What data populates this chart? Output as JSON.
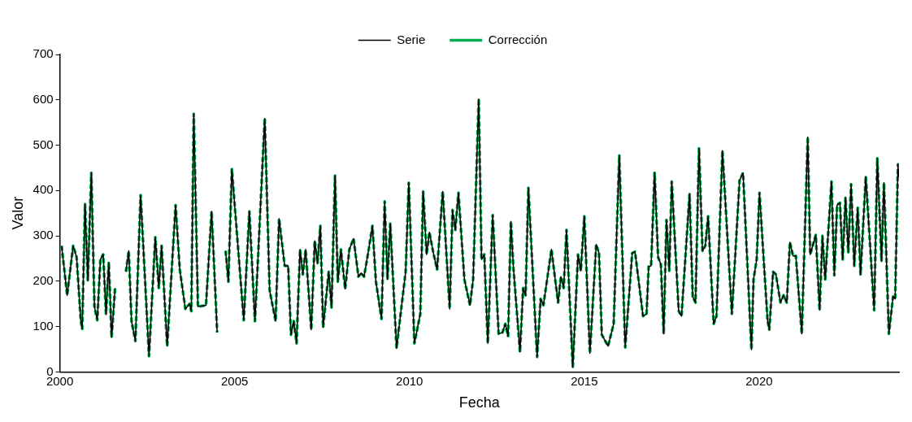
{
  "chart_data": {
    "type": "line",
    "xlabel": "Fecha",
    "ylabel": "Valor",
    "xlim": [
      2000,
      2024
    ],
    "xticks": [
      2000,
      2005,
      2010,
      2015,
      2020
    ],
    "ylim": [
      0,
      700
    ],
    "yticks": [
      0,
      100,
      200,
      300,
      400,
      500,
      600,
      700
    ],
    "grid": false,
    "legend": "top",
    "marker": "none",
    "x": [
      2000.05,
      2000.21,
      2000.38,
      2000.48,
      2000.6,
      2000.64,
      2000.72,
      2000.8,
      2000.9,
      2000.99,
      2001.07,
      2001.16,
      2001.24,
      2001.32,
      2001.4,
      2001.48,
      2001.58,
      2001.73,
      2001.89,
      2001.97,
      2002.05,
      2002.16,
      2002.31,
      2002.55,
      2002.73,
      2002.83,
      2002.91,
      2003.07,
      2003.31,
      2003.43,
      2003.59,
      2003.71,
      2003.76,
      2003.83,
      2003.95,
      2004.18,
      2004.34,
      2004.5,
      2004.62,
      2004.74,
      2004.82,
      2004.92,
      2005.26,
      2005.42,
      2005.58,
      2005.86,
      2006,
      2006.17,
      2006.27,
      2006.43,
      2006.53,
      2006.61,
      2006.69,
      2006.77,
      2006.87,
      2006.95,
      2007.03,
      2007.19,
      2007.29,
      2007.37,
      2007.45,
      2007.53,
      2007.69,
      2007.77,
      2007.87,
      2007.95,
      2008.04,
      2008.16,
      2008.28,
      2008.4,
      2008.54,
      2008.62,
      2008.7,
      2008.81,
      2008.94,
      2009.04,
      2009.2,
      2009.29,
      2009.37,
      2009.45,
      2009.63,
      2009.89,
      2009.98,
      2010.14,
      2010.31,
      2010.39,
      2010.49,
      2010.57,
      2010.67,
      2010.79,
      2010.95,
      2011.15,
      2011.23,
      2011.31,
      2011.4,
      2011.57,
      2011.73,
      2011.82,
      2011.98,
      2012.06,
      2012.14,
      2012.24,
      2012.38,
      2012.55,
      2012.66,
      2012.74,
      2012.82,
      2012.9,
      2012.97,
      2013.16,
      2013.25,
      2013.32,
      2013.4,
      2013.65,
      2013.75,
      2013.83,
      2014.06,
      2014.25,
      2014.33,
      2014.41,
      2014.49,
      2014.67,
      2014.82,
      2014.9,
      2015,
      2015.16,
      2015.34,
      2015.42,
      2015.5,
      2015.68,
      2015.84,
      2016,
      2016.17,
      2016.37,
      2016.45,
      2016.68,
      2016.78,
      2016.84,
      2016.91,
      2017.01,
      2017.11,
      2017.19,
      2017.27,
      2017.35,
      2017.43,
      2017.5,
      2017.7,
      2017.78,
      2018.01,
      2018.1,
      2018.18,
      2018.28,
      2018.38,
      2018.46,
      2018.54,
      2018.7,
      2018.78,
      2018.95,
      2019.22,
      2019.44,
      2019.54,
      2019.78,
      2019.84,
      2019.93,
      2020.01,
      2020.24,
      2020.29,
      2020.4,
      2020.48,
      2020.61,
      2020.7,
      2020.79,
      2020.88,
      2020.97,
      2021.05,
      2021.22,
      2021.39,
      2021.46,
      2021.62,
      2021.73,
      2021.81,
      2021.89,
      2022.07,
      2022.15,
      2022.23,
      2022.31,
      2022.39,
      2022.47,
      2022.55,
      2022.63,
      2022.72,
      2022.82,
      2022.9,
      2023.05,
      2023.29,
      2023.38,
      2023.5,
      2023.57,
      2023.71,
      2023.83,
      2023.89,
      2023.97,
      2023.99
    ],
    "series": [
      {
        "name": "Serie",
        "color": "#000000",
        "line_style": "solid",
        "values": [
          278,
          169,
          278,
          253,
          112,
          95,
          370,
          202,
          439,
          144,
          114,
          248,
          259,
          128,
          242,
          76,
          185,
          null,
          221,
          267,
          112,
          68,
          390,
          35,
          297,
          185,
          278,
          57,
          368,
          226,
          139,
          150,
          134,
          569,
          144,
          147,
          354,
          87,
          null,
          267,
          199,
          447,
          114,
          354,
          112,
          559,
          180,
          112,
          338,
          234,
          234,
          82,
          112,
          63,
          270,
          215,
          270,
          93,
          289,
          240,
          322,
          98,
          221,
          142,
          433,
          199,
          270,
          183,
          270,
          294,
          210,
          218,
          210,
          259,
          322,
          199,
          117,
          376,
          204,
          327,
          52,
          221,
          417,
          63,
          128,
          398,
          259,
          308,
          267,
          226,
          398,
          139,
          357,
          313,
          395,
          204,
          147,
          204,
          602,
          248,
          259,
          63,
          346,
          84,
          87,
          106,
          79,
          332,
          232,
          44,
          185,
          169,
          406,
          33,
          161,
          147,
          270,
          153,
          210,
          185,
          313,
          11,
          259,
          223,
          343,
          41,
          281,
          262,
          82,
          57,
          106,
          477,
          54,
          262,
          265,
          123,
          128,
          232,
          234,
          439,
          253,
          237,
          84,
          335,
          223,
          420,
          134,
          123,
          392,
          166,
          153,
          493,
          267,
          278,
          343,
          106,
          123,
          488,
          128,
          422,
          439,
          49,
          204,
          248,
          395,
          114,
          93,
          221,
          215,
          153,
          169,
          153,
          286,
          256,
          256,
          84,
          518,
          259,
          302,
          136,
          300,
          204,
          420,
          213,
          368,
          373,
          248,
          384,
          264,
          414,
          234,
          362,
          215,
          431,
          136,
          471,
          245,
          417,
          84,
          166,
          161,
          458,
          430
        ]
      },
      {
        "name": "Corrección",
        "color": "#00b050",
        "line_style": "dashed",
        "values": [
          278,
          169,
          278,
          253,
          112,
          95,
          370,
          202,
          439,
          144,
          114,
          248,
          259,
          128,
          242,
          76,
          185,
          null,
          221,
          267,
          112,
          68,
          390,
          35,
          297,
          185,
          278,
          57,
          368,
          226,
          139,
          150,
          134,
          569,
          144,
          147,
          354,
          87,
          null,
          267,
          199,
          447,
          114,
          354,
          112,
          559,
          180,
          112,
          338,
          234,
          234,
          82,
          112,
          63,
          270,
          215,
          270,
          93,
          289,
          240,
          322,
          98,
          221,
          142,
          433,
          199,
          270,
          183,
          270,
          294,
          210,
          218,
          210,
          259,
          322,
          199,
          117,
          376,
          204,
          327,
          52,
          221,
          417,
          63,
          128,
          398,
          259,
          308,
          267,
          226,
          398,
          139,
          357,
          313,
          395,
          204,
          147,
          204,
          602,
          248,
          259,
          63,
          346,
          84,
          87,
          106,
          79,
          332,
          232,
          44,
          185,
          169,
          406,
          33,
          161,
          147,
          270,
          153,
          210,
          185,
          313,
          11,
          259,
          223,
          343,
          41,
          281,
          262,
          82,
          57,
          106,
          477,
          54,
          262,
          265,
          123,
          128,
          232,
          234,
          439,
          253,
          237,
          84,
          335,
          223,
          420,
          134,
          123,
          392,
          166,
          153,
          493,
          267,
          278,
          343,
          106,
          123,
          488,
          128,
          422,
          439,
          49,
          204,
          248,
          395,
          114,
          93,
          221,
          215,
          153,
          169,
          153,
          286,
          256,
          256,
          84,
          518,
          259,
          302,
          136,
          300,
          204,
          420,
          213,
          368,
          373,
          248,
          384,
          264,
          414,
          234,
          362,
          215,
          431,
          136,
          471,
          245,
          417,
          84,
          166,
          161,
          458,
          430
        ]
      }
    ]
  }
}
